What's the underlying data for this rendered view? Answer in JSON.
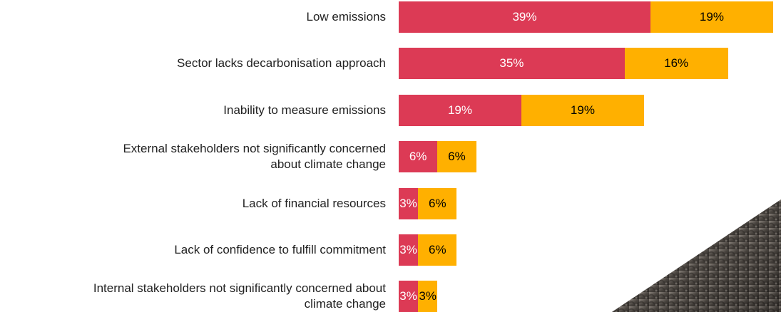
{
  "chart_data": {
    "type": "stacked-bar-horizontal",
    "categories": [
      "Low emissions",
      "Sector lacks decarbonisation approach",
      "Inability to measure emissions",
      "External stakeholders not significantly concerned\nabout climate change",
      "Lack of financial resources",
      "Lack of confidence to fulfill commitment",
      "Internal stakeholders not significantly concerned about\nclimate change"
    ],
    "series": [
      {
        "color": "#dc3a55",
        "label_color": "#ffffff",
        "values": [
          39,
          35,
          19,
          6,
          3,
          3,
          3
        ],
        "value_labels": [
          "39%",
          "35%",
          "19%",
          "6%",
          "3%",
          "3%",
          "3%"
        ]
      },
      {
        "color": "#ffb000",
        "label_color": "#000000",
        "values": [
          19,
          16,
          19,
          6,
          6,
          6,
          3
        ],
        "value_labels": [
          "19%",
          "16%",
          "19%",
          "6%",
          "6%",
          "6%",
          "3%"
        ]
      }
    ]
  }
}
